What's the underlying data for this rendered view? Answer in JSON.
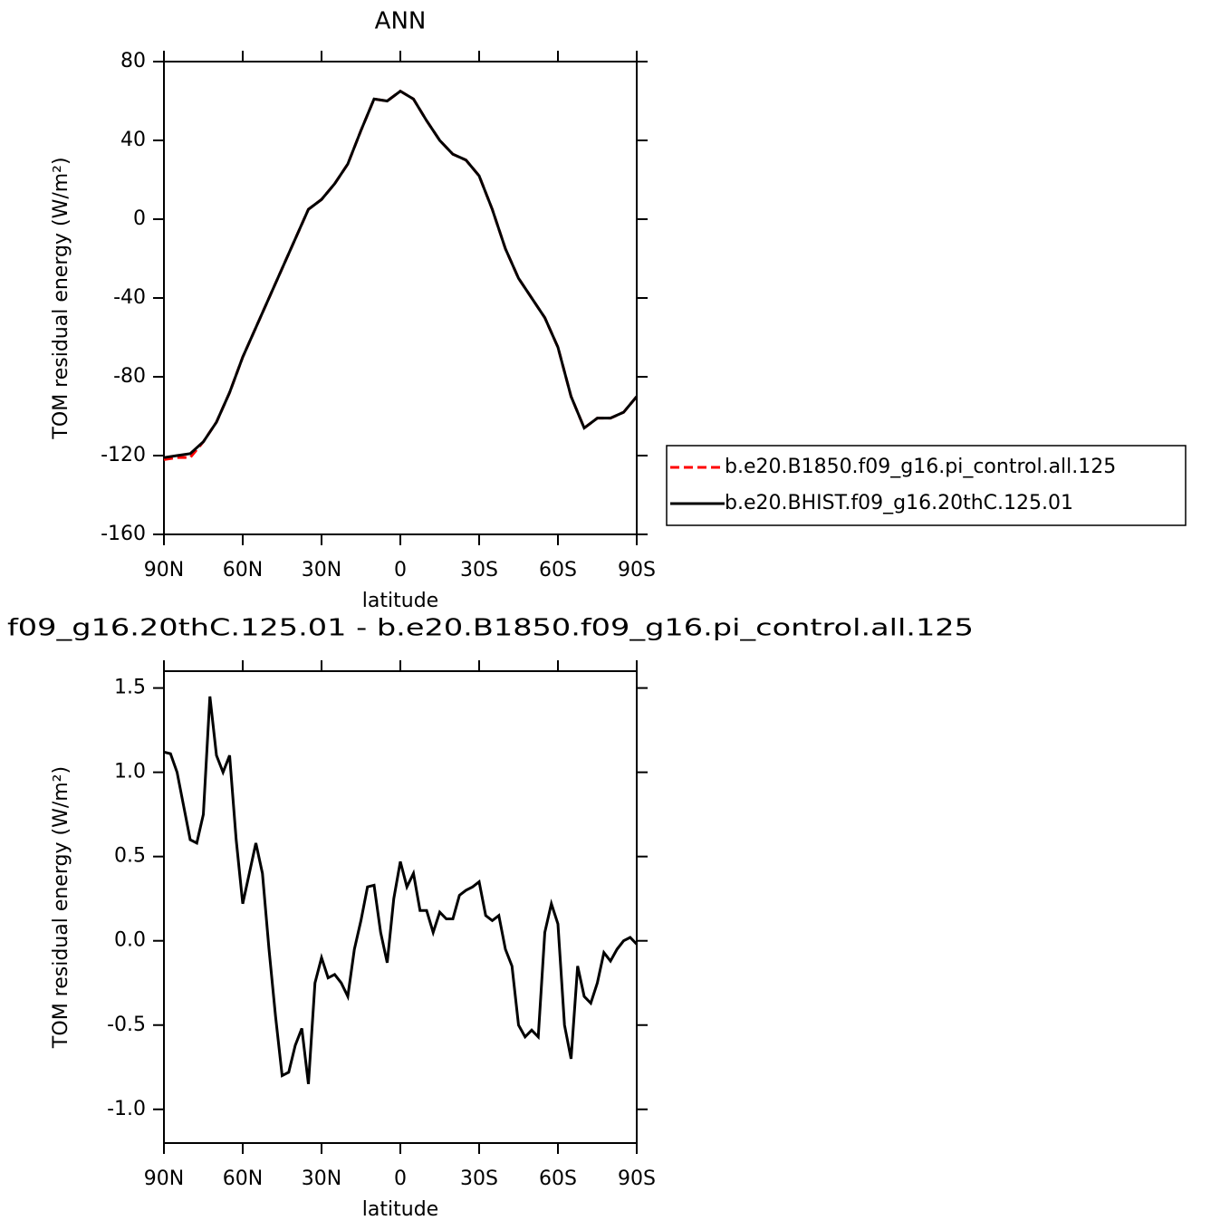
{
  "chart_data": [
    {
      "type": "line",
      "title": "ANN",
      "xlabel": "latitude",
      "ylabel": "TOM residual energy (W/m²)",
      "x": [
        90,
        85,
        80,
        75,
        70,
        65,
        60,
        55,
        50,
        45,
        40,
        35,
        30,
        25,
        20,
        15,
        10,
        5,
        0,
        -5,
        -10,
        -15,
        -20,
        -25,
        -30,
        -35,
        -40,
        -45,
        -50,
        -55,
        -60,
        -65,
        -70,
        -75,
        -80,
        -85,
        -90
      ],
      "series": [
        {
          "name": "b.e20.B1850.f09_g16.pi_control.all.125",
          "color": "#ff0000",
          "dash": true,
          "values": [
            -122,
            -121,
            -121,
            -113,
            -103,
            -88,
            -70,
            -55,
            -40,
            -25,
            -10,
            5,
            10,
            18,
            28,
            45,
            61,
            60,
            65,
            61,
            50,
            40,
            33,
            30,
            22,
            5,
            -15,
            -30,
            -40,
            -50,
            -65,
            -90,
            -106,
            -101,
            -101,
            -98,
            -90
          ]
        },
        {
          "name": "b.e20.BHIST.f09_g16.20thC.125.01",
          "color": "#000000",
          "dash": false,
          "values": [
            -121,
            -120,
            -119,
            -113,
            -103,
            -88,
            -70,
            -55,
            -40,
            -25,
            -10,
            5,
            10,
            18,
            28,
            45,
            61,
            60,
            65,
            61,
            50,
            40,
            33,
            30,
            22,
            5,
            -15,
            -30,
            -40,
            -50,
            -65,
            -90,
            -106,
            -101,
            -101,
            -98,
            -90
          ]
        }
      ],
      "xlim": [
        90,
        -90
      ],
      "xticks": [
        {
          "value": 90,
          "label": "90N"
        },
        {
          "value": 60,
          "label": "60N"
        },
        {
          "value": 30,
          "label": "30N"
        },
        0,
        {
          "value": -30,
          "label": "30S"
        },
        {
          "value": -60,
          "label": "60S"
        },
        {
          "value": -90,
          "label": "90S"
        }
      ],
      "ylim": [
        -160,
        80
      ],
      "yticks": [
        80,
        40,
        0,
        -40,
        -80,
        -120,
        -160
      ]
    },
    {
      "type": "line",
      "title": "f09_g16.20thC.125.01 - b.e20.B1850.f09_g16.pi_control.all.125",
      "xlabel": "latitude",
      "ylabel": "TOM residual energy (W/m²)",
      "x": [
        90,
        87.5,
        85,
        82.5,
        80,
        77.5,
        75,
        72.5,
        70,
        67.5,
        65,
        62.5,
        60,
        57.5,
        55,
        52.5,
        50,
        47.5,
        45,
        42.5,
        40,
        37.5,
        35,
        32.5,
        30,
        27.5,
        25,
        22.5,
        20,
        17.5,
        15,
        12.5,
        10,
        7.5,
        5,
        2.5,
        0,
        -2.5,
        -5,
        -7.5,
        -10,
        -12.5,
        -15,
        -17.5,
        -20,
        -22.5,
        -25,
        -27.5,
        -30,
        -32.5,
        -35,
        -37.5,
        -40,
        -42.5,
        -45,
        -47.5,
        -50,
        -52.5,
        -55,
        -57.5,
        -60,
        -62.5,
        -65,
        -67.5,
        -70,
        -72.5,
        -75,
        -77.5,
        -80,
        -82.5,
        -85,
        -87.5,
        -90
      ],
      "values": [
        1.12,
        1.11,
        1.0,
        0.8,
        0.6,
        0.58,
        0.75,
        1.45,
        1.1,
        1.0,
        1.1,
        0.6,
        0.22,
        0.4,
        0.58,
        0.4,
        -0.05,
        -0.45,
        -0.8,
        -0.78,
        -0.62,
        -0.52,
        -0.85,
        -0.25,
        -0.1,
        -0.22,
        -0.2,
        -0.25,
        -0.33,
        -0.05,
        0.12,
        0.32,
        0.33,
        0.05,
        -0.13,
        0.25,
        0.47,
        0.32,
        0.4,
        0.18,
        0.18,
        0.05,
        0.17,
        0.13,
        0.13,
        0.27,
        0.3,
        0.32,
        0.35,
        0.15,
        0.12,
        0.15,
        -0.05,
        -0.15,
        -0.5,
        -0.57,
        -0.53,
        -0.57,
        0.05,
        0.22,
        0.1,
        -0.5,
        -0.7,
        -0.15,
        -0.33,
        -0.37,
        -0.25,
        -0.07,
        -0.12,
        -0.05,
        0.0,
        0.02,
        -0.02
      ],
      "color": "#000000",
      "xlim": [
        90,
        -90
      ],
      "xticks": [
        {
          "value": 90,
          "label": "90N"
        },
        {
          "value": 60,
          "label": "60N"
        },
        {
          "value": 30,
          "label": "30N"
        },
        0,
        {
          "value": -30,
          "label": "30S"
        },
        {
          "value": -60,
          "label": "60S"
        },
        {
          "value": -90,
          "label": "90S"
        }
      ],
      "ylim": [
        -1.2,
        1.6
      ],
      "yticks": [
        1.5,
        {
          "value": 1.0,
          "label": "1.0"
        },
        0.5,
        {
          "value": 0.0,
          "label": "0.0"
        },
        -0.5,
        {
          "value": -1.0,
          "label": "-1.0"
        }
      ]
    }
  ]
}
